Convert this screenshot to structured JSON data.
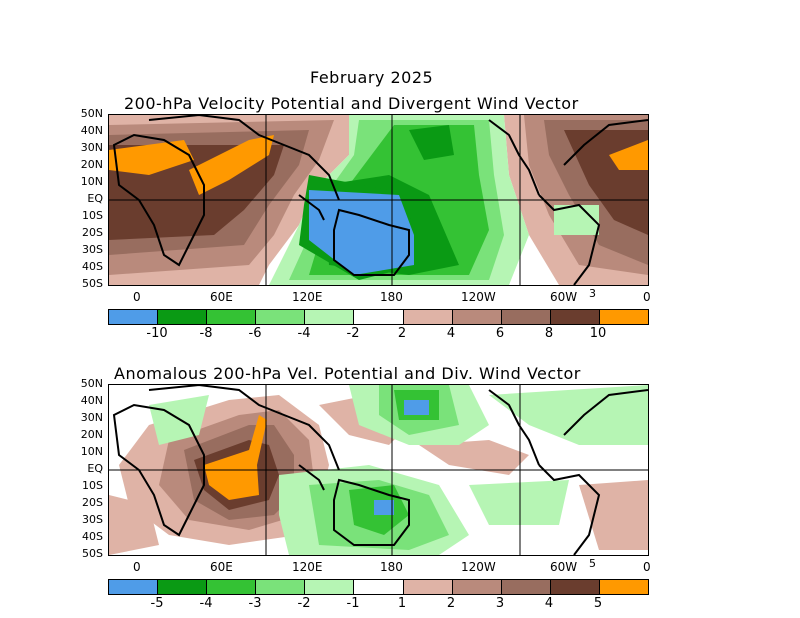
{
  "top": {
    "title_line1": "February 2025",
    "title_line2": "200-hPa Velocity Potential and Divergent Wind Vector",
    "ref_vector": "3",
    "colorbar_labels": [
      "-10",
      "-8",
      "-6",
      "-4",
      "-2",
      "2",
      "4",
      "6",
      "8",
      "10"
    ]
  },
  "bottom": {
    "title": "Anomalous 200-hPa Vel. Potential and Div. Wind Vector",
    "ref_vector": "5",
    "colorbar_labels": [
      "-5",
      "-4",
      "-3",
      "-2",
      "-1",
      "1",
      "2",
      "3",
      "4",
      "5"
    ]
  },
  "lat_labels": [
    "50N",
    "40N",
    "30N",
    "20N",
    "10N",
    "EQ",
    "10S",
    "20S",
    "30S",
    "40S",
    "50S"
  ],
  "lon_labels": [
    "0",
    "60E",
    "120E",
    "180",
    "120W",
    "60W",
    "0"
  ],
  "colorbar_colors": [
    "#4f9ce8",
    "#0a9a14",
    "#34c234",
    "#7ae27a",
    "#b6f5b4",
    "#ffffff",
    "#dfb3a6",
    "#b98a7c",
    "#986d5f",
    "#6a3d2e",
    "#ff9900"
  ],
  "map_colors": {
    "land_line": "#000000",
    "grid": "#000000"
  }
}
